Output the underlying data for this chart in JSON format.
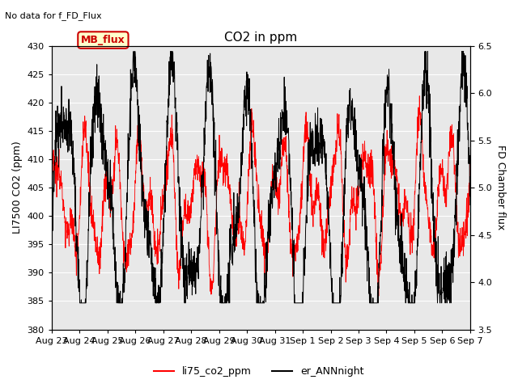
{
  "title": "CO2 in ppm",
  "topleft_text": "No data for f_FD_Flux",
  "ylabel_left": "LI7500 CO2 (ppm)",
  "ylabel_right": "FD Chamber flux",
  "ylim_left": [
    380,
    430
  ],
  "ylim_right": [
    3.5,
    6.5
  ],
  "yticks_left": [
    380,
    385,
    390,
    395,
    400,
    405,
    410,
    415,
    420,
    425,
    430
  ],
  "yticks_right": [
    3.5,
    4.0,
    4.5,
    5.0,
    5.5,
    6.0,
    6.5
  ],
  "xtick_labels": [
    "Aug 23",
    "Aug 24",
    "Aug 25",
    "Aug 26",
    "Aug 27",
    "Aug 28",
    "Aug 29",
    "Aug 30",
    "Aug 31",
    "Sep 1",
    "Sep 2",
    "Sep 3",
    "Sep 4",
    "Sep 5",
    "Sep 6",
    "Sep 7"
  ],
  "legend_entries": [
    {
      "label": "li75_co2_ppm",
      "color": "#ff0000",
      "linestyle": "-"
    },
    {
      "label": "er_ANNnight",
      "color": "#000000",
      "linestyle": "-"
    }
  ],
  "mb_flux_box": {
    "text": "MB_flux",
    "facecolor": "#ffffcc",
    "edgecolor": "#cc0000",
    "textcolor": "#cc0000"
  },
  "plot_bg_color": "#e8e8e8",
  "fig_bg_color": "#ffffff",
  "grid_color": "#ffffff",
  "seed": 42,
  "n_points": 2000
}
